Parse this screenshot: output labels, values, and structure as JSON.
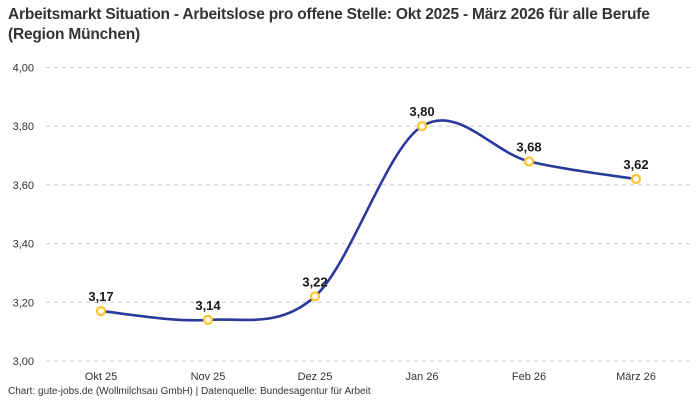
{
  "chart_data": {
    "type": "line",
    "title": "Arbeitsmarkt Situation - Arbeitslose pro offene Stelle: Okt 2025 - März 2026 für alle Berufe (Region München)",
    "categories": [
      "Okt 25",
      "Nov 25",
      "Dez 25",
      "Jan 26",
      "Feb 26",
      "März 26"
    ],
    "values": [
      3.17,
      3.14,
      3.22,
      3.8,
      3.68,
      3.62
    ],
    "value_labels": [
      "3,17",
      "3,14",
      "3,22",
      "3,80",
      "3,68",
      "3,62"
    ],
    "y_tick_values": [
      3.0,
      3.2,
      3.4,
      3.6,
      3.8,
      4.0
    ],
    "y_tick_labels": [
      "3,00",
      "3,20",
      "3,40",
      "3,60",
      "3,80",
      "4,00"
    ],
    "ylim": [
      3.0,
      4.0
    ],
    "xlabel": "",
    "ylabel": "",
    "legend": "none",
    "grid": "horizontal-dashed",
    "line_style": "smooth-spline",
    "colors": {
      "line": "#2A3A9B",
      "marker_ring": "#FFC32B",
      "marker_fill": "#FFFFFF",
      "grid": "#C9C9C9",
      "tick_text": "#333333",
      "data_label": "#1A1A1A",
      "title": "#333333",
      "background": "#FFFFFF"
    }
  },
  "footer": {
    "credit": "Chart: gute-jobs.de (Wollmilchsau GmbH) | Datenquelle: Bundesagentur für Arbeit"
  }
}
